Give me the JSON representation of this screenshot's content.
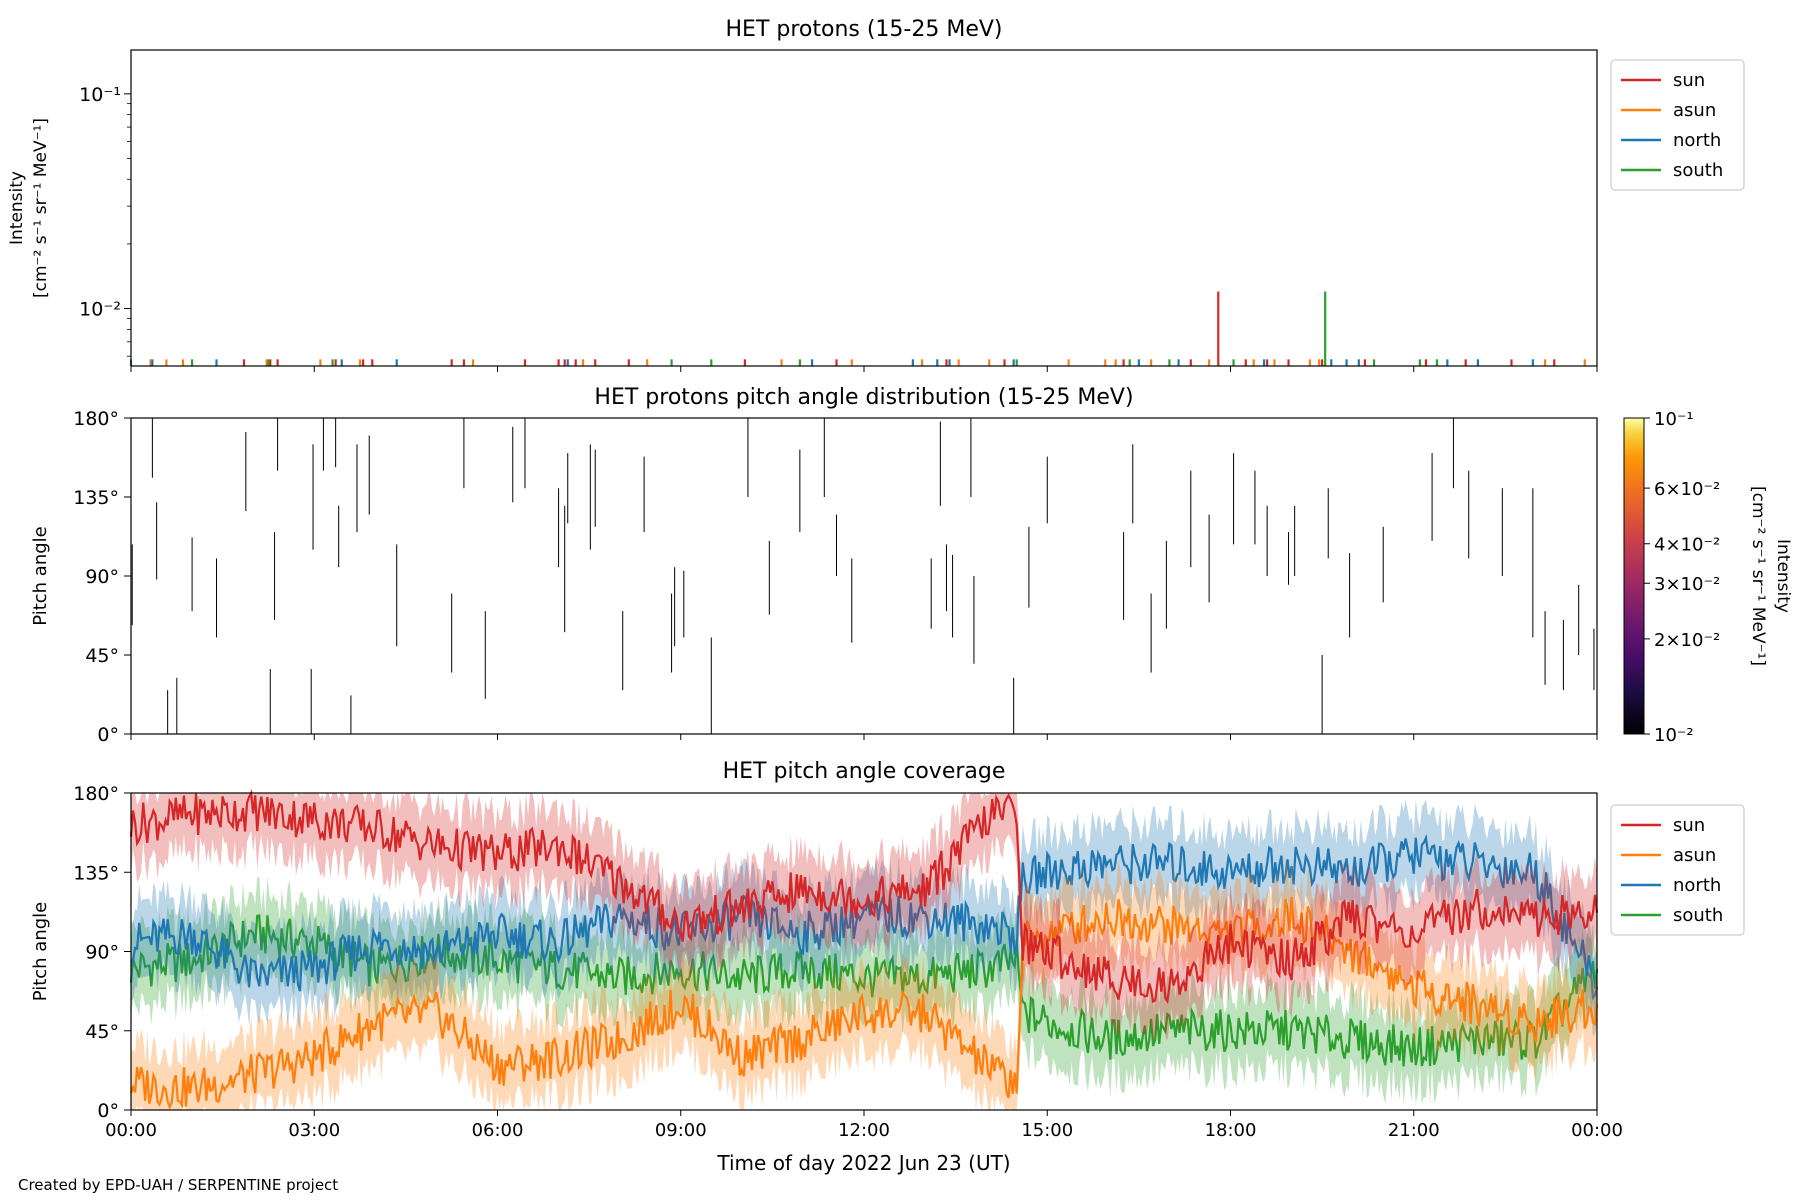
{
  "figure": {
    "credit": "Created by EPD-UAH / SERPENTINE project",
    "xlabel": "Time of day 2022 Jun 23 (UT)",
    "xticks": [
      "00:00",
      "03:00",
      "06:00",
      "09:00",
      "12:00",
      "15:00",
      "18:00",
      "21:00",
      "00:00"
    ]
  },
  "colors": {
    "sun": "#d62728",
    "asun": "#ff7f0e",
    "north": "#1f77b4",
    "south": "#2ca02c"
  },
  "chart_data": [
    {
      "type": "bar",
      "title": "HET protons (15-25 MeV)",
      "ylabel": [
        "Intensity",
        "[cm⁻² s⁻¹ sr⁻¹ MeV⁻¹]"
      ],
      "yscale": "log",
      "ylim": [
        0.0054,
        0.16
      ],
      "yticks": [
        "10⁻²",
        "10⁻¹"
      ],
      "xlim_hours": [
        0,
        24
      ],
      "legend": [
        "sun",
        "asun",
        "north",
        "south"
      ],
      "legend_position": "outside-right",
      "series": [
        {
          "name": "sun",
          "x": [
            1.85,
            2.28,
            2.4,
            3.35,
            3.8,
            3.95,
            5.25,
            5.45,
            6.45,
            7.0,
            7.1,
            7.28,
            7.6,
            8.15,
            10.05,
            11.55,
            13.35,
            14.3,
            16.25,
            17.35,
            17.8,
            18.25,
            18.6,
            18.95,
            19.5,
            20.2,
            21.2,
            21.85,
            22.6,
            23.3
          ],
          "y": [
            0.0058,
            0.0058,
            0.0058,
            0.0058,
            0.0058,
            0.0058,
            0.0058,
            0.0058,
            0.0058,
            0.0058,
            0.0058,
            0.0058,
            0.0058,
            0.0058,
            0.0058,
            0.0058,
            0.0058,
            0.0058,
            0.0058,
            0.0058,
            0.012,
            0.0058,
            0.0058,
            0.0058,
            0.0058,
            0.0058,
            0.0058,
            0.0058,
            0.0058,
            0.0058
          ]
        },
        {
          "name": "asun",
          "x": [
            0.32,
            0.58,
            0.85,
            2.22,
            3.1,
            3.75,
            5.6,
            7.4,
            8.45,
            10.65,
            11.8,
            12.95,
            13.55,
            14.05,
            15.35,
            15.95,
            16.12,
            16.7,
            17.65,
            18.38,
            18.72,
            19.3,
            19.45,
            23.15,
            23.8
          ],
          "y": [
            0.0058,
            0.0058,
            0.0058,
            0.0058,
            0.0058,
            0.0058,
            0.0058,
            0.0058,
            0.0058,
            0.0058,
            0.0058,
            0.0058,
            0.0058,
            0.0058,
            0.0058,
            0.0058,
            0.0058,
            0.0058,
            0.0058,
            0.0058,
            0.0058,
            0.0058,
            0.0058,
            0.0058,
            0.0058
          ]
        },
        {
          "name": "north",
          "x": [
            0.35,
            1.4,
            3.45,
            4.35,
            7.15,
            11.15,
            12.8,
            13.2,
            13.4,
            14.45,
            16.5,
            17.15,
            18.55,
            19.65,
            19.9,
            20.1,
            21.55,
            22.05,
            22.95
          ],
          "y": [
            0.0058,
            0.0058,
            0.0058,
            0.0058,
            0.0058,
            0.0058,
            0.0058,
            0.0058,
            0.0058,
            0.0058,
            0.0058,
            0.0058,
            0.0058,
            0.0058,
            0.0058,
            0.0058,
            0.0058,
            0.0058,
            0.0058
          ]
        },
        {
          "name": "south",
          "x": [
            0.0,
            1.0,
            2.25,
            3.3,
            8.85,
            9.5,
            10.95,
            14.5,
            16.35,
            17.0,
            18.05,
            19.55,
            20.35,
            21.1,
            21.38
          ],
          "y": [
            0.0058,
            0.0058,
            0.0058,
            0.0058,
            0.0058,
            0.0058,
            0.0058,
            0.0058,
            0.0058,
            0.0058,
            0.0058,
            0.012,
            0.0058,
            0.0058,
            0.0058
          ]
        }
      ]
    },
    {
      "type": "heatmap",
      "title": "HET protons pitch angle distribution (15-25 MeV)",
      "ylabel": "Pitch angle",
      "ylim": [
        0,
        180
      ],
      "yticks": [
        "0°",
        "45°",
        "90°",
        "135°",
        "180°"
      ],
      "colorbar": {
        "label": [
          "Intensity",
          "[cm⁻² s⁻¹ sr⁻¹ MeV⁻¹]"
        ],
        "scale": "log",
        "range": [
          0.01,
          0.1
        ],
        "ticks": [
          "10⁻²",
          "2×10⁻²",
          "3×10⁻²",
          "4×10⁻²",
          "6×10⁻²",
          "10⁻¹"
        ],
        "tick_values": [
          0.01,
          0.02,
          0.03,
          0.04,
          0.06,
          0.1
        ],
        "colormap": "inferno"
      },
      "cells": [
        [
          0.02,
          62,
          108
        ],
        [
          0.35,
          146,
          180
        ],
        [
          0.42,
          88,
          132
        ],
        [
          0.6,
          0,
          25
        ],
        [
          0.75,
          0,
          32
        ],
        [
          1.0,
          70,
          112
        ],
        [
          1.4,
          55,
          100
        ],
        [
          1.88,
          127,
          172
        ],
        [
          2.28,
          0,
          37
        ],
        [
          2.35,
          65,
          115
        ],
        [
          2.4,
          150,
          180
        ],
        [
          2.95,
          0,
          37
        ],
        [
          2.98,
          105,
          165
        ],
        [
          3.15,
          150,
          180
        ],
        [
          3.35,
          152,
          180
        ],
        [
          3.6,
          0,
          22
        ],
        [
          3.4,
          95,
          130
        ],
        [
          3.7,
          115,
          165
        ],
        [
          3.9,
          125,
          170
        ],
        [
          4.35,
          50,
          108
        ],
        [
          5.25,
          35,
          80
        ],
        [
          5.45,
          140,
          180
        ],
        [
          5.8,
          20,
          70
        ],
        [
          6.25,
          132,
          175
        ],
        [
          6.45,
          140,
          180
        ],
        [
          7.0,
          95,
          140
        ],
        [
          7.15,
          120,
          160
        ],
        [
          7.52,
          105,
          165
        ],
        [
          7.6,
          118,
          162
        ],
        [
          7.1,
          58,
          130
        ],
        [
          8.05,
          25,
          70
        ],
        [
          8.4,
          115,
          158
        ],
        [
          8.85,
          35,
          80
        ],
        [
          8.9,
          50,
          95
        ],
        [
          9.05,
          55,
          93
        ],
        [
          9.5,
          0,
          55
        ],
        [
          10.1,
          135,
          180
        ],
        [
          10.45,
          68,
          110
        ],
        [
          10.95,
          115,
          162
        ],
        [
          11.35,
          135,
          180
        ],
        [
          11.55,
          90,
          125
        ],
        [
          11.8,
          52,
          100
        ],
        [
          13.1,
          60,
          100
        ],
        [
          13.35,
          70,
          108
        ],
        [
          13.45,
          55,
          102
        ],
        [
          13.25,
          130,
          178
        ],
        [
          13.75,
          135,
          180
        ],
        [
          13.8,
          40,
          90
        ],
        [
          14.45,
          0,
          32
        ],
        [
          14.7,
          72,
          118
        ],
        [
          15.0,
          120,
          158
        ],
        [
          16.25,
          65,
          115
        ],
        [
          16.4,
          120,
          165
        ],
        [
          16.7,
          35,
          80
        ],
        [
          16.95,
          60,
          110
        ],
        [
          17.35,
          95,
          150
        ],
        [
          17.65,
          75,
          125
        ],
        [
          18.05,
          108,
          160
        ],
        [
          18.4,
          108,
          150
        ],
        [
          18.6,
          90,
          130
        ],
        [
          18.95,
          85,
          115
        ],
        [
          19.05,
          90,
          130
        ],
        [
          19.5,
          0,
          45
        ],
        [
          19.6,
          100,
          140
        ],
        [
          19.95,
          55,
          103
        ],
        [
          20.5,
          75,
          118
        ],
        [
          21.3,
          110,
          160
        ],
        [
          21.65,
          140,
          180
        ],
        [
          21.9,
          100,
          150
        ],
        [
          22.45,
          90,
          140
        ],
        [
          22.95,
          55,
          140
        ],
        [
          23.15,
          28,
          70
        ],
        [
          23.45,
          25,
          65
        ],
        [
          23.7,
          45,
          85
        ],
        [
          23.95,
          25,
          60
        ]
      ]
    },
    {
      "type": "area",
      "title": "HET pitch angle coverage",
      "ylabel": "Pitch angle",
      "ylim": [
        0,
        180
      ],
      "yticks": [
        "0°",
        "45°",
        "90°",
        "135°",
        "180°"
      ],
      "legend": [
        "sun",
        "asun",
        "north",
        "south"
      ],
      "legend_position": "outside-right",
      "band_halfwidth_deg": 22,
      "series": [
        {
          "name": "sun",
          "x": [
            0,
            1,
            2,
            3,
            4,
            5,
            6,
            7,
            8,
            9,
            10,
            11,
            12,
            13,
            14,
            14.5,
            14.6,
            15,
            16,
            17,
            18,
            19,
            20,
            21,
            22,
            23,
            24
          ],
          "y": [
            162,
            168,
            170,
            165,
            160,
            150,
            145,
            150,
            130,
            105,
            115,
            125,
            120,
            125,
            165,
            172,
            95,
            90,
            75,
            70,
            95,
            85,
            110,
            100,
            115,
            110,
            112
          ]
        },
        {
          "name": "asun",
          "x": [
            0,
            1,
            2,
            3,
            4,
            5,
            6,
            7,
            8,
            9,
            10,
            11,
            12,
            13,
            14,
            14.5,
            14.6,
            15,
            16,
            17,
            18,
            19,
            20,
            21,
            22,
            23,
            24
          ],
          "y": [
            15,
            12,
            20,
            30,
            50,
            55,
            25,
            30,
            40,
            60,
            30,
            40,
            55,
            55,
            25,
            15,
            95,
            100,
            110,
            105,
            100,
            110,
            90,
            70,
            60,
            50,
            60
          ]
        },
        {
          "name": "north",
          "x": [
            0,
            1,
            2,
            3,
            4,
            5,
            6,
            7,
            8,
            9,
            10,
            11,
            12,
            13,
            14,
            14.5,
            14.6,
            15,
            16,
            17,
            18,
            19,
            20,
            21,
            22,
            23,
            24
          ],
          "y": [
            95,
            100,
            75,
            80,
            95,
            90,
            100,
            95,
            110,
            100,
            110,
            100,
            110,
            110,
            105,
            100,
            130,
            135,
            140,
            140,
            135,
            140,
            135,
            145,
            140,
            135,
            70
          ]
        },
        {
          "name": "south",
          "x": [
            0,
            1,
            2,
            3,
            4,
            5,
            6,
            7,
            8,
            9,
            10,
            11,
            12,
            13,
            14,
            14.5,
            14.6,
            15,
            16,
            17,
            18,
            19,
            20,
            21,
            22,
            23,
            24
          ],
          "y": [
            80,
            85,
            100,
            95,
            80,
            90,
            85,
            80,
            75,
            80,
            75,
            80,
            75,
            75,
            80,
            85,
            55,
            50,
            40,
            45,
            45,
            45,
            40,
            35,
            40,
            40,
            80
          ]
        }
      ]
    }
  ]
}
